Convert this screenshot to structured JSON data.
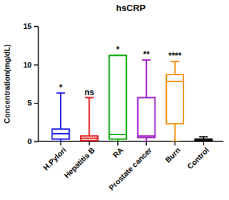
{
  "chart_data": {
    "type": "box",
    "title": "hsCRP",
    "y_label": "Concentration(mg/dL)",
    "categories": [
      "H.Pylori",
      "Hepatitis B",
      "RA",
      "Prostate cancer",
      "Burn",
      "Control"
    ],
    "min": [
      0,
      0,
      0,
      0,
      0,
      0
    ],
    "q1": [
      0.3,
      0.1,
      0.3,
      0.5,
      2.3,
      0.05
    ],
    "median": [
      1.0,
      0.4,
      0.9,
      0.7,
      7.8,
      0.15
    ],
    "q3": [
      1.6,
      0.7,
      11.2,
      5.7,
      8.7,
      0.3
    ],
    "max": [
      6.3,
      5.7,
      11.2,
      10.6,
      10.4,
      0.6
    ],
    "annotations": [
      "*",
      "ns",
      "*",
      "**",
      "****",
      null
    ],
    "colors": [
      "#1a1ae6",
      "#e01b1b",
      "#0aa80a",
      "#a020c8",
      "#f08a00",
      "#000000"
    ],
    "ylim": [
      0,
      15
    ],
    "yticks": [
      0,
      5,
      10,
      15
    ],
    "grid": false
  }
}
